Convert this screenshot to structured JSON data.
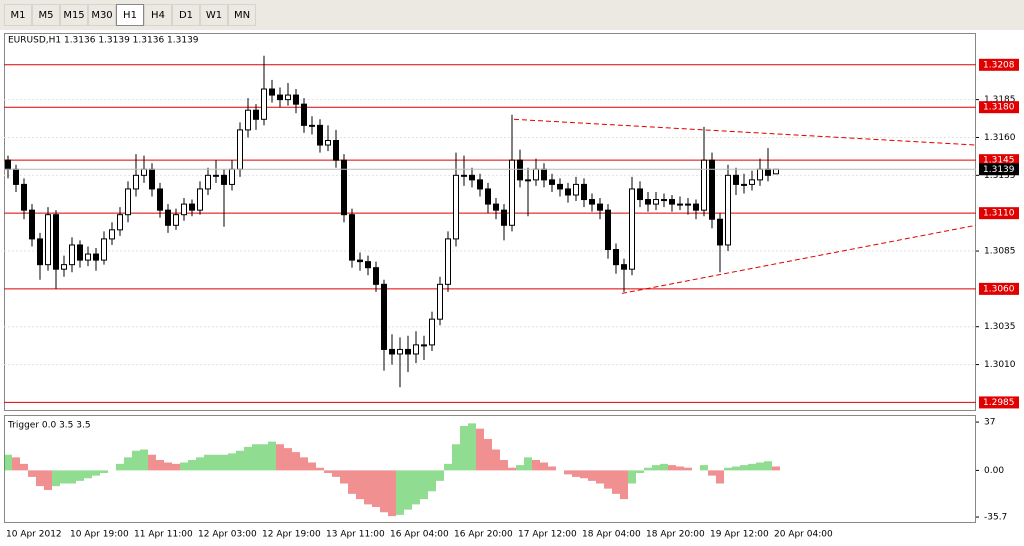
{
  "toolbar": {
    "buttons": [
      "M1",
      "M5",
      "M15",
      "M30",
      "H1",
      "H4",
      "D1",
      "W1",
      "MN"
    ],
    "active": "H1"
  },
  "chart_data": [
    {
      "type": "candlestick",
      "title": "EURUSD,H1  1.3136 1.3139 1.3136 1.3139",
      "ylim": [
        1.298,
        1.3229
      ],
      "yticks": [
        1.3185,
        {
          "value": 1.316,
          "label": "1.3160"
        },
        1.3135,
        1.3085,
        1.3035,
        {
          "value": 1.301,
          "label": "1.3010"
        }
      ],
      "grid_values": [
        1.3185,
        1.316,
        1.3135,
        1.311,
        1.3085,
        1.306,
        1.3035,
        1.301
      ],
      "levels": [
        1.3208,
        {
          "value": 1.318,
          "label": "1.3180"
        },
        1.3145,
        {
          "value": 1.311,
          "label": "1.3110"
        },
        {
          "value": 1.306,
          "label": "1.3060"
        },
        1.2985
      ],
      "level_color": "#e00000",
      "current_price": 1.3139,
      "up_color": "#ffffff",
      "down_color": "#000000",
      "wick_color": "#000000",
      "trendlines": [
        {
          "x": [
            63.25,
            121
          ],
          "y": [
            1.3172,
            1.3155
          ]
        },
        {
          "x": [
            76.75,
            121
          ],
          "y": [
            1.3057,
            1.3102
          ]
        }
      ],
      "categories": [
        "10 Apr 2012",
        null,
        null,
        null,
        null,
        null,
        null,
        null,
        "10 Apr 19:00",
        null,
        null,
        null,
        null,
        null,
        null,
        null,
        "11 Apr 11:00",
        null,
        null,
        null,
        null,
        null,
        null,
        null,
        "12 Apr 03:00",
        null,
        null,
        null,
        null,
        null,
        null,
        null,
        "12 Apr 19:00",
        null,
        null,
        null,
        null,
        null,
        null,
        null,
        "13 Apr 11:00",
        null,
        null,
        null,
        null,
        null,
        null,
        null,
        "16 Apr 04:00",
        null,
        null,
        null,
        null,
        null,
        null,
        null,
        "16 Apr 20:00",
        null,
        null,
        null,
        null,
        null,
        null,
        null,
        "17 Apr 12:00",
        null,
        null,
        null,
        null,
        null,
        null,
        null,
        "18 Apr 04:00",
        null,
        null,
        null,
        null,
        null,
        null,
        null,
        "18 Apr 20:00",
        null,
        null,
        null,
        null,
        null,
        null,
        null,
        "19 Apr 12:00",
        null,
        null,
        null,
        null,
        null,
        null,
        null,
        "20 Apr 04:00"
      ],
      "candles": [
        [
          1.3145,
          1.3148,
          1.3133,
          1.3139
        ],
        [
          1.3139,
          1.3142,
          1.3124,
          1.3129
        ],
        [
          1.3129,
          1.3133,
          1.3106,
          1.3112
        ],
        [
          1.3112,
          1.3116,
          1.3088,
          1.3093
        ],
        [
          1.3093,
          1.3097,
          1.3066,
          1.3076
        ],
        [
          1.3076,
          1.3114,
          1.3072,
          1.3109
        ],
        [
          1.3109,
          1.3112,
          1.306,
          1.3073
        ],
        [
          1.3073,
          1.3082,
          1.3068,
          1.3076
        ],
        [
          1.3076,
          1.3094,
          1.3071,
          1.3089
        ],
        [
          1.3089,
          1.3092,
          1.3074,
          1.3079
        ],
        [
          1.3079,
          1.3088,
          1.3075,
          1.3083
        ],
        [
          1.3083,
          1.3087,
          1.3072,
          1.3079
        ],
        [
          1.3079,
          1.3098,
          1.3076,
          1.3093
        ],
        [
          1.3093,
          1.3104,
          1.3089,
          1.3099
        ],
        [
          1.3099,
          1.3114,
          1.3095,
          1.3109
        ],
        [
          1.3109,
          1.3131,
          1.3104,
          1.3126
        ],
        [
          1.3126,
          1.3149,
          1.3121,
          1.3135
        ],
        [
          1.3135,
          1.3148,
          1.313,
          1.3139
        ],
        [
          1.3139,
          1.3143,
          1.3121,
          1.3126
        ],
        [
          1.3126,
          1.313,
          1.3107,
          1.3112
        ],
        [
          1.3112,
          1.3116,
          1.3097,
          1.3102
        ],
        [
          1.3102,
          1.3113,
          1.3099,
          1.3109
        ],
        [
          1.3109,
          1.312,
          1.3105,
          1.3116
        ],
        [
          1.3116,
          1.3119,
          1.3108,
          1.3112
        ],
        [
          1.3112,
          1.3131,
          1.3109,
          1.3126
        ],
        [
          1.3126,
          1.314,
          1.3122,
          1.3135
        ],
        [
          1.3135,
          1.3145,
          1.313,
          1.3135
        ],
        [
          1.3135,
          1.3139,
          1.3101,
          1.3129
        ],
        [
          1.3129,
          1.3145,
          1.3125,
          1.3139
        ],
        [
          1.3139,
          1.317,
          1.3134,
          1.3165
        ],
        [
          1.3165,
          1.3186,
          1.316,
          1.3178
        ],
        [
          1.3178,
          1.3182,
          1.3165,
          1.3172
        ],
        [
          1.3172,
          1.3214,
          1.3168,
          1.3192
        ],
        [
          1.3192,
          1.3198,
          1.3183,
          1.3188
        ],
        [
          1.3188,
          1.3193,
          1.318,
          1.3185
        ],
        [
          1.3185,
          1.3196,
          1.3181,
          1.3188
        ],
        [
          1.3188,
          1.3192,
          1.3176,
          1.3182
        ],
        [
          1.3182,
          1.3186,
          1.3163,
          1.3168
        ],
        [
          1.3168,
          1.3174,
          1.3162,
          1.3168
        ],
        [
          1.3168,
          1.3172,
          1.315,
          1.3155
        ],
        [
          1.3155,
          1.3168,
          1.3151,
          1.3158
        ],
        [
          1.3158,
          1.3165,
          1.314,
          1.3145
        ],
        [
          1.3145,
          1.3149,
          1.3104,
          1.3109
        ],
        [
          1.3109,
          1.3113,
          1.3074,
          1.3079
        ],
        [
          1.3079,
          1.3084,
          1.3072,
          1.3078
        ],
        [
          1.3078,
          1.3082,
          1.3069,
          1.3074
        ],
        [
          1.3074,
          1.3078,
          1.3058,
          1.3063
        ],
        [
          1.3063,
          1.3066,
          1.3006,
          1.302
        ],
        [
          1.302,
          1.303,
          1.301,
          1.3017
        ],
        [
          1.3017,
          1.3028,
          1.2995,
          1.302
        ],
        [
          1.302,
          1.3029,
          1.3005,
          1.3017
        ],
        [
          1.3017,
          1.3032,
          1.3011,
          1.3023
        ],
        [
          1.3023,
          1.3029,
          1.3013,
          1.3023
        ],
        [
          1.3023,
          1.3045,
          1.3019,
          1.304
        ],
        [
          1.304,
          1.3068,
          1.3036,
          1.3063
        ],
        [
          1.3063,
          1.3098,
          1.3058,
          1.3093
        ],
        [
          1.3093,
          1.315,
          1.3088,
          1.3135
        ],
        [
          1.3135,
          1.3148,
          1.3128,
          1.3135
        ],
        [
          1.3135,
          1.314,
          1.3127,
          1.3132
        ],
        [
          1.3132,
          1.3136,
          1.3121,
          1.3126
        ],
        [
          1.3126,
          1.313,
          1.311,
          1.3116
        ],
        [
          1.3116,
          1.312,
          1.3106,
          1.3112
        ],
        [
          1.3112,
          1.3116,
          1.3092,
          1.3102
        ],
        [
          1.3102,
          1.3175,
          1.3098,
          1.3145
        ],
        [
          1.3145,
          1.3152,
          1.3127,
          1.3132
        ],
        [
          1.3132,
          1.314,
          1.3108,
          1.3132
        ],
        [
          1.3132,
          1.3146,
          1.3128,
          1.3139
        ],
        [
          1.3139,
          1.3143,
          1.3127,
          1.3132
        ],
        [
          1.3132,
          1.3136,
          1.3124,
          1.3129
        ],
        [
          1.3129,
          1.3133,
          1.3121,
          1.3126
        ],
        [
          1.3126,
          1.313,
          1.3117,
          1.3122
        ],
        [
          1.3122,
          1.3134,
          1.3118,
          1.3129
        ],
        [
          1.3129,
          1.3133,
          1.3114,
          1.3119
        ],
        [
          1.3119,
          1.3123,
          1.3111,
          1.3116
        ],
        [
          1.3116,
          1.312,
          1.3106,
          1.3112
        ],
        [
          1.3112,
          1.3116,
          1.308,
          1.3086
        ],
        [
          1.3086,
          1.309,
          1.307,
          1.3076
        ],
        [
          1.3076,
          1.308,
          1.3058,
          1.3073
        ],
        [
          1.3073,
          1.3134,
          1.3069,
          1.3126
        ],
        [
          1.3126,
          1.3131,
          1.3114,
          1.3119
        ],
        [
          1.3119,
          1.3124,
          1.3111,
          1.3116
        ],
        [
          1.3116,
          1.3124,
          1.3112,
          1.3119
        ],
        [
          1.3119,
          1.3123,
          1.3114,
          1.3119
        ],
        [
          1.3119,
          1.3122,
          1.3111,
          1.3116
        ],
        [
          1.3116,
          1.3121,
          1.3112,
          1.3116
        ],
        [
          1.3116,
          1.312,
          1.3109,
          1.3116
        ],
        [
          1.3116,
          1.3119,
          1.3106,
          1.3112
        ],
        [
          1.3112,
          1.3167,
          1.3108,
          1.3145
        ],
        [
          1.3145,
          1.315,
          1.31,
          1.3106
        ],
        [
          1.3106,
          1.311,
          1.3071,
          1.3089
        ],
        [
          1.3089,
          1.3142,
          1.3085,
          1.3135
        ],
        [
          1.3135,
          1.314,
          1.3122,
          1.3129
        ],
        [
          1.3129,
          1.3136,
          1.3123,
          1.3129
        ],
        [
          1.3129,
          1.3138,
          1.3125,
          1.3132
        ],
        [
          1.3132,
          1.3146,
          1.3128,
          1.3139
        ],
        [
          1.3139,
          1.3153,
          1.3131,
          1.3135
        ],
        [
          1.3136,
          1.3139,
          1.3136,
          1.3139
        ]
      ]
    },
    {
      "type": "histogram",
      "title": "Trigger 0.0 3.5 3.5",
      "ylim": [
        -39.5,
        42.4
      ],
      "yticks": [
        37,
        {
          "value": 0,
          "label": "0.00"
        },
        -35.7
      ],
      "up_color": "#22b822",
      "down_color": "#e02020",
      "values": [
        12,
        10,
        5,
        -5,
        -12,
        -15,
        -12,
        -10,
        -10,
        -8,
        -6,
        -4,
        -2,
        0,
        5,
        10,
        15,
        16,
        12,
        8,
        6,
        5,
        6,
        8,
        10,
        12,
        12,
        12,
        13,
        15,
        18,
        20,
        20,
        22,
        20,
        17,
        14,
        10,
        6,
        2,
        -2,
        -5,
        -10,
        -18,
        -22,
        -26,
        -28,
        -32,
        -35,
        -34,
        -30,
        -26,
        -22,
        -16,
        -8,
        5,
        20,
        34,
        36,
        32,
        24,
        16,
        8,
        2,
        4,
        10,
        8,
        6,
        3,
        0,
        -3,
        -5,
        -6,
        -8,
        -10,
        -14,
        -18,
        -22,
        -10,
        -2,
        2,
        4,
        5,
        4,
        3,
        2,
        0,
        4,
        -4,
        -10,
        2,
        3,
        4,
        5,
        6,
        7,
        3
      ]
    }
  ]
}
